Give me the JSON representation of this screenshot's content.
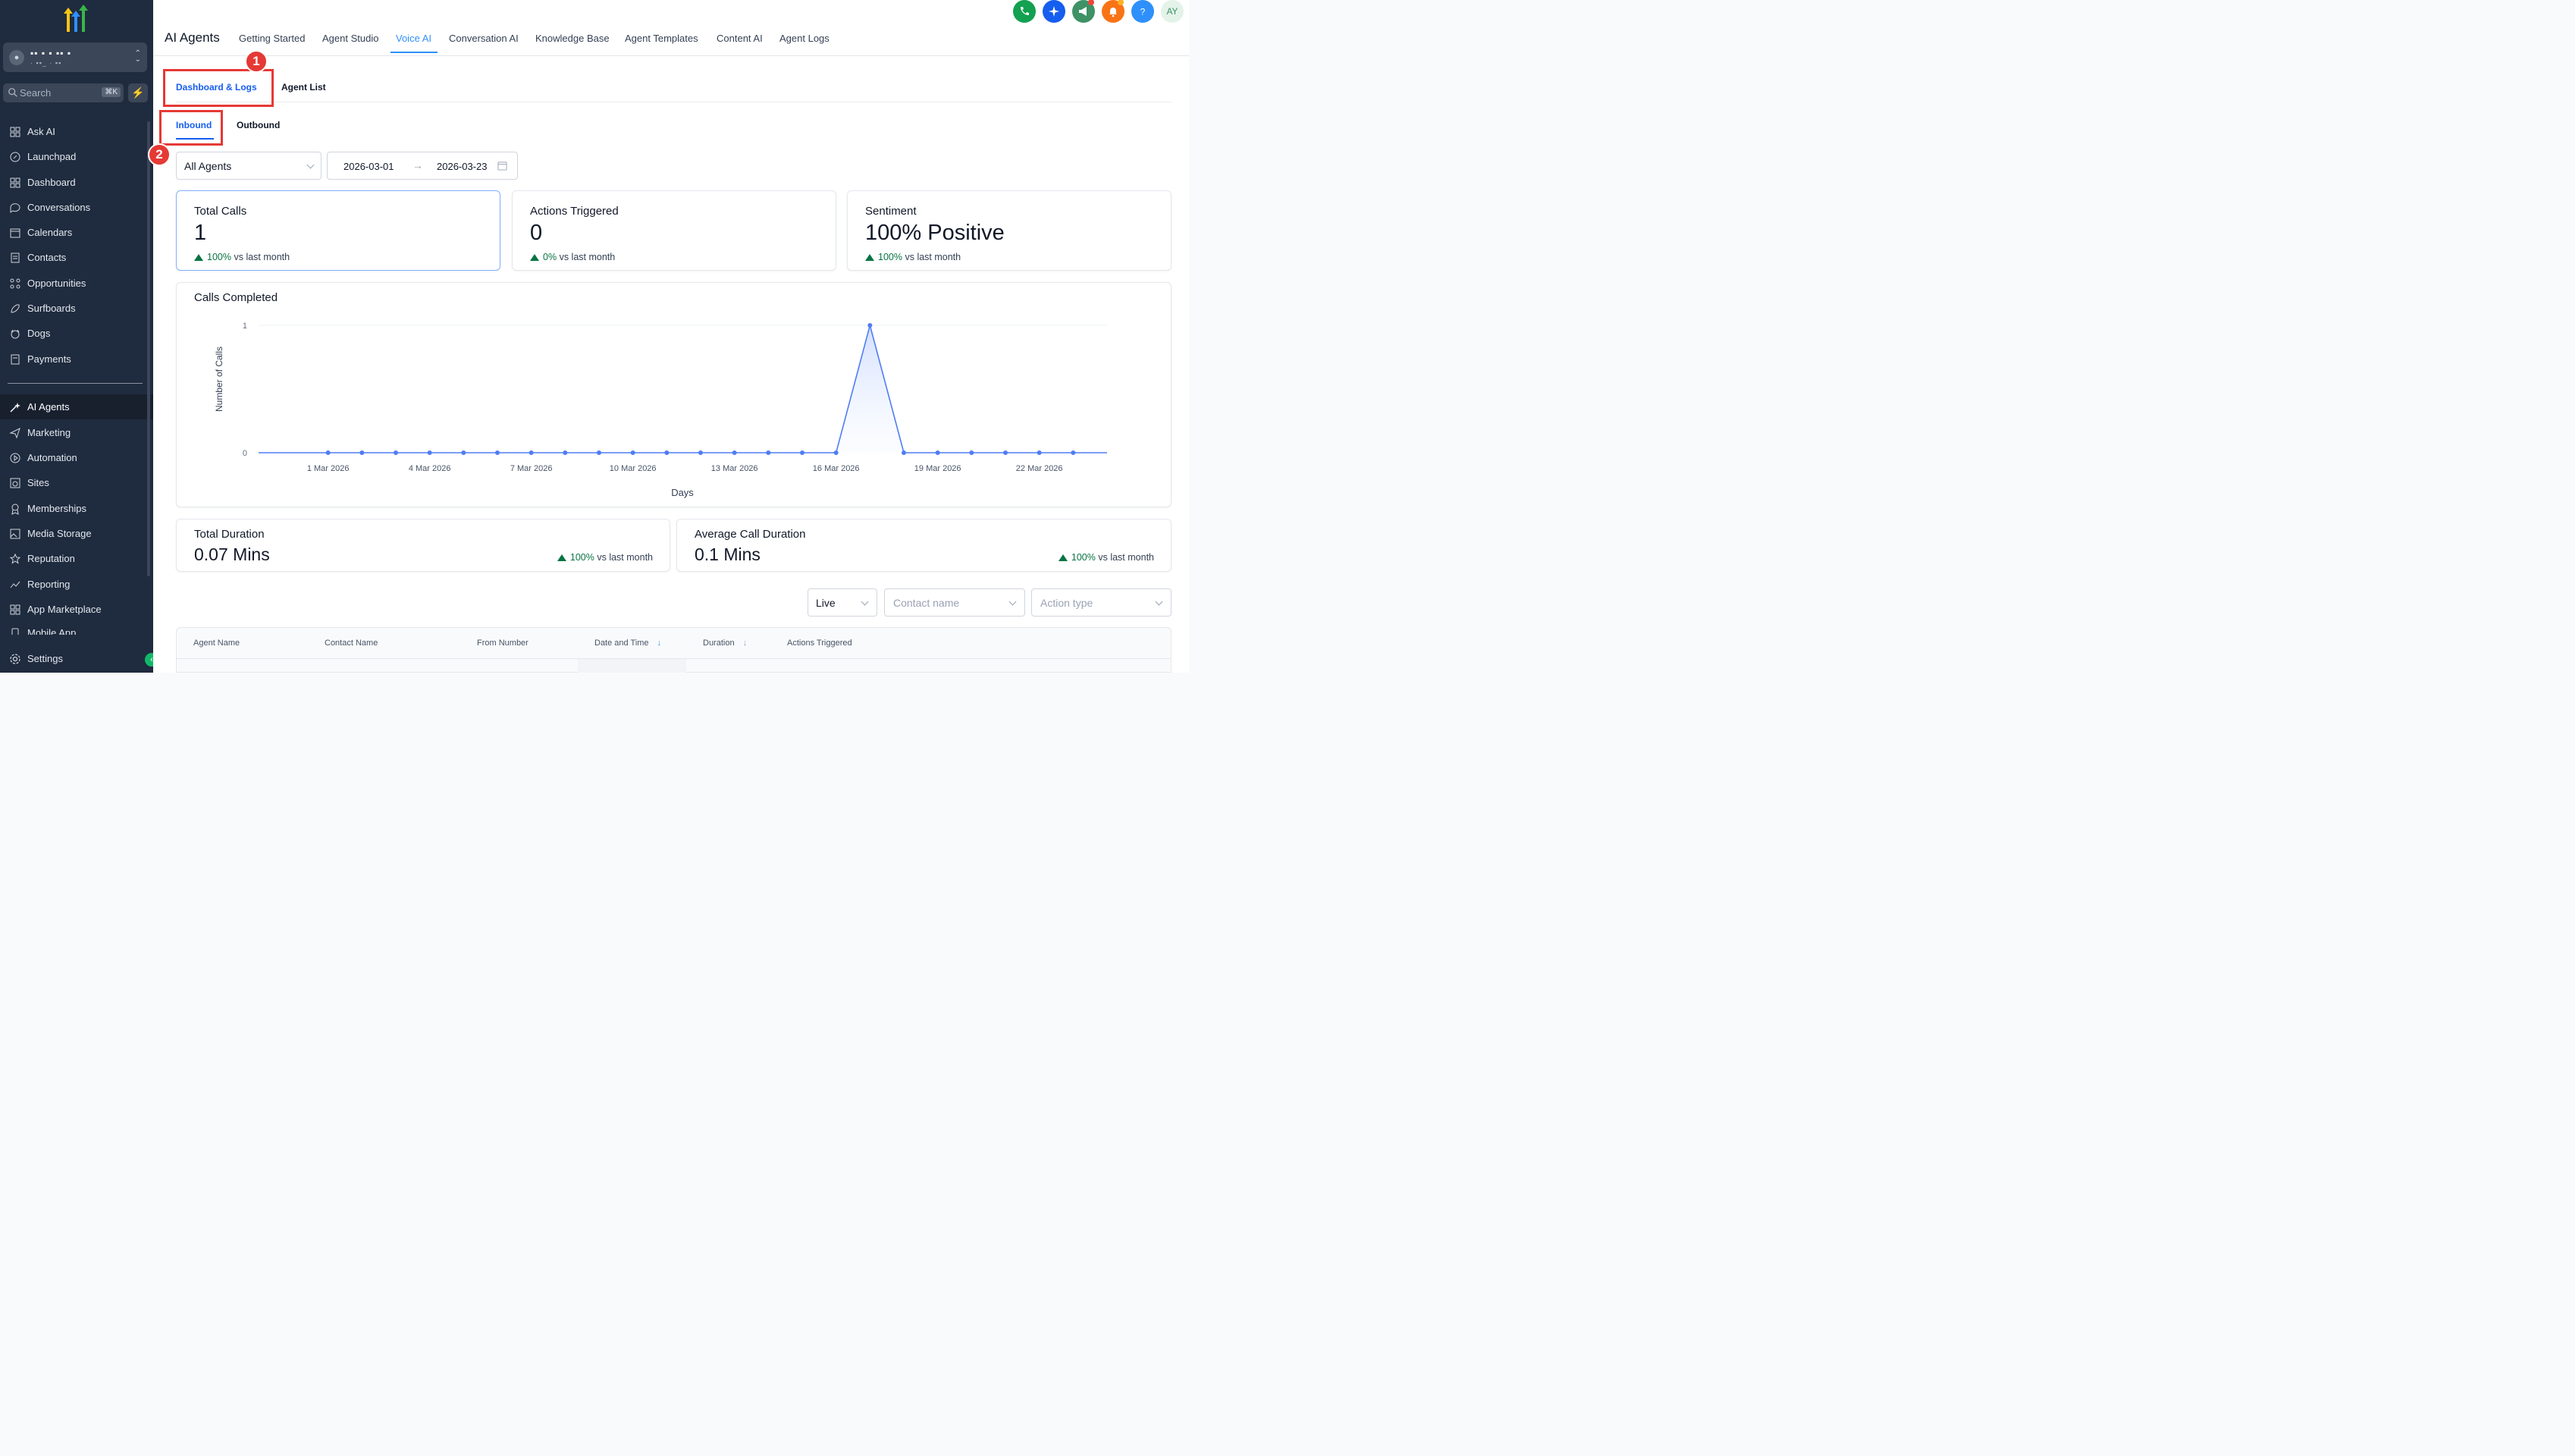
{
  "sidebar": {
    "location_name": "▪▪ ▪ ▪ ▪▪ ▪",
    "location_sub": "· ▪▪_ · ▪▪",
    "search_placeholder": "Search",
    "search_shortcut": "⌘K",
    "items": [
      {
        "label": "Ask AI",
        "icon": "grid-icon"
      },
      {
        "label": "Launchpad",
        "icon": "rocket-icon"
      },
      {
        "label": "Dashboard",
        "icon": "grid-icon"
      },
      {
        "label": "Conversations",
        "icon": "chat-bubble-icon"
      },
      {
        "label": "Calendars",
        "icon": "calendar-icon"
      },
      {
        "label": "Contacts",
        "icon": "contacts-icon"
      },
      {
        "label": "Opportunities",
        "icon": "opportunities-icon"
      },
      {
        "label": "Surfboards",
        "icon": "surfboard-icon"
      },
      {
        "label": "Dogs",
        "icon": "dog-icon"
      },
      {
        "label": "Payments",
        "icon": "receipt-icon"
      },
      {
        "label": "AI Agents",
        "icon": "sparkle-wand-icon",
        "active": true
      },
      {
        "label": "Marketing",
        "icon": "send-icon"
      },
      {
        "label": "Automation",
        "icon": "play-circle-icon"
      },
      {
        "label": "Sites",
        "icon": "globe-window-icon"
      },
      {
        "label": "Memberships",
        "icon": "award-icon"
      },
      {
        "label": "Media Storage",
        "icon": "image-icon"
      },
      {
        "label": "Reputation",
        "icon": "star-icon"
      },
      {
        "label": "Reporting",
        "icon": "trend-line-icon"
      },
      {
        "label": "App Marketplace",
        "icon": "grid-icon"
      },
      {
        "label": "Mobile App",
        "icon": "phone-icon"
      }
    ],
    "settings_label": "Settings"
  },
  "header": {
    "title": "AI Agents",
    "tabs": [
      "Getting Started",
      "Agent Studio",
      "Voice AI",
      "Conversation AI",
      "Knowledge Base",
      "Agent Templates",
      "Content AI",
      "Agent Logs"
    ],
    "active_tab": "Voice AI",
    "avatar_initials": "AY",
    "icons": [
      {
        "name": "phone-icon",
        "color": "#12a150"
      },
      {
        "name": "sparkle-icon",
        "color": "#155eef"
      },
      {
        "name": "megaphone-icon",
        "color": "#3e9265"
      },
      {
        "name": "bell-icon",
        "color": "#f97316"
      },
      {
        "name": "help-icon",
        "color": "#2e90fa"
      }
    ]
  },
  "subtabs": {
    "items": [
      "Dashboard & Logs",
      "Agent List"
    ],
    "active": "Dashboard & Logs"
  },
  "direction_tabs": {
    "items": [
      "Inbound",
      "Outbound"
    ],
    "active": "Inbound"
  },
  "annotations": [
    "1",
    "2"
  ],
  "filters": {
    "agent": "All Agents",
    "date_start": "2026-03-01",
    "date_end": "2026-03-23"
  },
  "stats": [
    {
      "title": "Total Calls",
      "value": "1",
      "change": "100%",
      "change_label": "vs last month"
    },
    {
      "title": "Actions Triggered",
      "value": "0",
      "change": "0%",
      "change_label": "vs last month"
    },
    {
      "title": "Sentiment",
      "value": "100% Positive",
      "change": "100%",
      "change_label": "vs last month"
    }
  ],
  "durations": [
    {
      "title": "Total Duration",
      "value": "0.07 Mins",
      "change": "100%",
      "change_label": "vs last month"
    },
    {
      "title": "Average Call Duration",
      "value": "0.1 Mins",
      "change": "100%",
      "change_label": "vs last month"
    }
  ],
  "chart_data": {
    "type": "area",
    "title": "Calls Completed",
    "xlabel": "Days",
    "ylabel": "Number of Calls",
    "ylim": [
      0,
      1
    ],
    "yticks": [
      "0",
      "1"
    ],
    "x": [
      "1 Mar 2026",
      "2 Mar 2026",
      "3 Mar 2026",
      "4 Mar 2026",
      "5 Mar 2026",
      "6 Mar 2026",
      "7 Mar 2026",
      "8 Mar 2026",
      "9 Mar 2026",
      "10 Mar 2026",
      "11 Mar 2026",
      "12 Mar 2026",
      "13 Mar 2026",
      "14 Mar 2026",
      "15 Mar 2026",
      "16 Mar 2026",
      "17 Mar 2026",
      "18 Mar 2026",
      "19 Mar 2026",
      "20 Mar 2026",
      "21 Mar 2026",
      "22 Mar 2026",
      "23 Mar 2026"
    ],
    "xticks": [
      "1 Mar 2026",
      "4 Mar 2026",
      "7 Mar 2026",
      "10 Mar 2026",
      "13 Mar 2026",
      "16 Mar 2026",
      "19 Mar 2026",
      "22 Mar 2026"
    ],
    "series": [
      {
        "values": [
          0,
          0,
          0,
          0,
          0,
          0,
          0,
          0,
          0,
          0,
          0,
          0,
          0,
          0,
          0,
          0,
          1,
          0,
          0,
          0,
          0,
          0,
          0
        ]
      }
    ],
    "color": "#4f7df3",
    "grid": true
  },
  "table_filters": {
    "mode": "Live",
    "contact_placeholder": "Contact name",
    "action_placeholder": "Action type"
  },
  "table": {
    "columns": [
      "Agent Name",
      "Contact Name",
      "From Number",
      "Date and Time",
      "Duration",
      "Actions Triggered"
    ]
  }
}
